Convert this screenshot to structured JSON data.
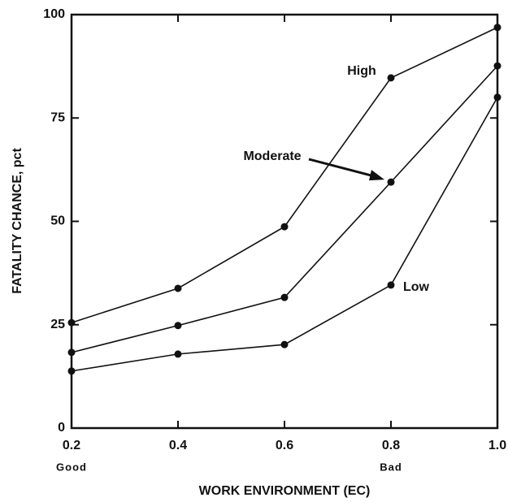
{
  "chart_data": {
    "type": "line",
    "x_label": "WORK ENVIRONMENT (EC)",
    "y_label": "FATALITY CHANCE, pct",
    "x": [
      0.2,
      0.4,
      0.6,
      0.8,
      1.0
    ],
    "series": [
      {
        "name": "High",
        "color": "#111111",
        "values": [
          25.5,
          33.8,
          48.7,
          84.7,
          96.9
        ]
      },
      {
        "name": "Moderate",
        "color": "#111111",
        "values": [
          18.3,
          24.8,
          31.6,
          59.5,
          87.6
        ]
      },
      {
        "name": "Low",
        "color": "#111111",
        "values": [
          13.8,
          17.9,
          20.2,
          34.6,
          80
        ]
      }
    ],
    "xlim": [
      0.2,
      1.0
    ],
    "xticks": [
      0.2,
      0.4,
      0.6,
      0.8,
      {
        "value": 1.0,
        "label": "1.0"
      }
    ],
    "xtick_sublabels": [
      {
        "value": 0.2,
        "label": "Good"
      },
      {
        "value": 0.8,
        "label": "Bad"
      }
    ],
    "ylim": [
      0,
      100
    ],
    "yticks": [
      0,
      25,
      50,
      75,
      100
    ]
  }
}
